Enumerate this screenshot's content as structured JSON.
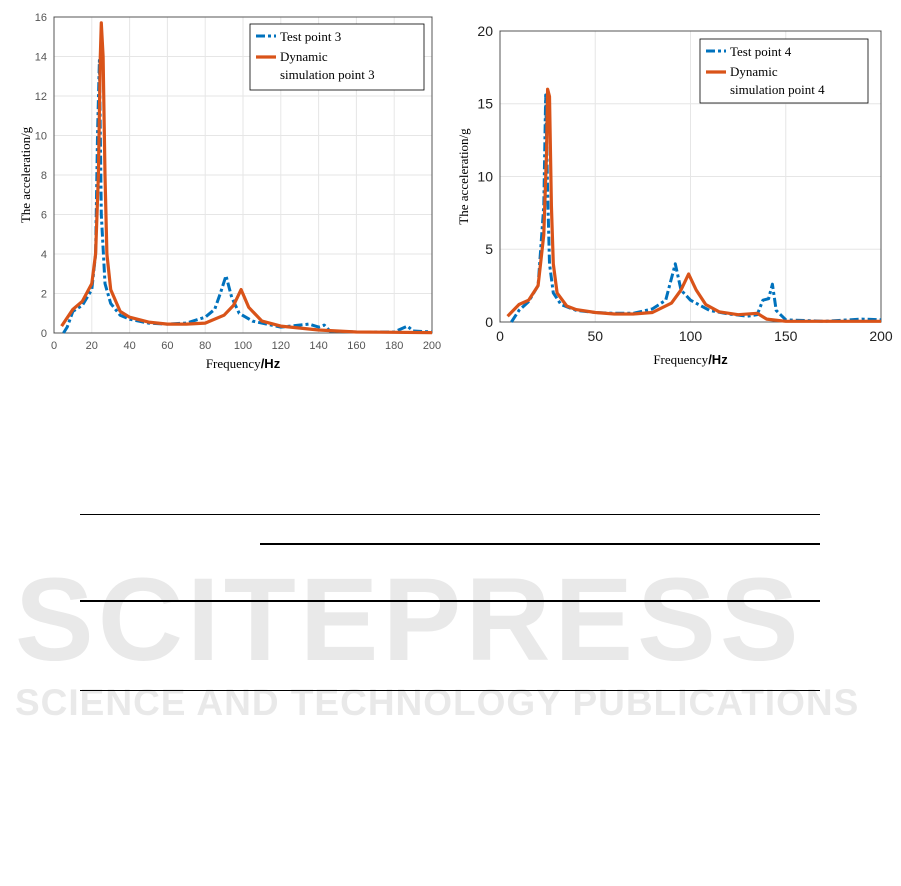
{
  "watermark": {
    "title": "SCITEPRESS",
    "subtitle": "SCIENCE AND TECHNOLOGY PUBLICATIONS"
  },
  "colors": {
    "test": "#0072bd",
    "sim": "#d95319",
    "grid": "#e6e6e6"
  },
  "chart_data": [
    {
      "type": "line",
      "xlabel": "Frequency",
      "xunit": "/Hz",
      "ylabel": "The acceleration/g",
      "xlim": [
        0,
        200
      ],
      "ylim": [
        0,
        16
      ],
      "xticks": [
        0,
        20,
        40,
        60,
        80,
        100,
        120,
        140,
        160,
        180,
        200
      ],
      "yticks": [
        0,
        2,
        4,
        6,
        8,
        10,
        12,
        14,
        16
      ],
      "grid": true,
      "legend": "top-right",
      "series": [
        {
          "name": "Test point 3",
          "style": "dash-dot",
          "x": [
            5,
            7,
            10,
            15,
            20,
            22,
            23,
            24,
            25,
            27,
            30,
            35,
            40,
            50,
            60,
            70,
            80,
            85,
            88,
            91,
            94,
            98,
            105,
            120,
            135,
            140,
            143,
            146,
            160,
            180,
            187,
            190,
            200
          ],
          "y": [
            0,
            0.3,
            1.1,
            1.4,
            2.2,
            4,
            10,
            13.8,
            6,
            2.5,
            1.5,
            0.9,
            0.7,
            0.5,
            0.45,
            0.5,
            0.8,
            1.2,
            2,
            2.9,
            1.8,
            1.0,
            0.6,
            0.3,
            0.45,
            0.3,
            0.4,
            0.1,
            0.05,
            0.05,
            0.35,
            0.1,
            0.05
          ]
        },
        {
          "name": "Dynamic simulation point 3",
          "style": "solid",
          "x": [
            4,
            10,
            15,
            20,
            22,
            23.5,
            24.5,
            25,
            26,
            27,
            28,
            30,
            35,
            40,
            50,
            60,
            70,
            80,
            90,
            95,
            99,
            103,
            110,
            120,
            140,
            160,
            200
          ],
          "y": [
            0.35,
            1.2,
            1.6,
            2.5,
            4,
            8,
            14,
            15.7,
            14,
            8,
            4,
            2.2,
            1.1,
            0.8,
            0.55,
            0.45,
            0.45,
            0.5,
            0.9,
            1.4,
            2.2,
            1.3,
            0.6,
            0.35,
            0.15,
            0.05,
            0.02
          ]
        }
      ]
    },
    {
      "type": "line",
      "xlabel": "Frequency",
      "xunit": "/Hz",
      "ylabel": "The acceleration/g",
      "xlim": [
        0,
        200
      ],
      "ylim": [
        0,
        20
      ],
      "xticks": [
        0,
        50,
        100,
        150,
        200
      ],
      "yticks": [
        0,
        5,
        10,
        15,
        20
      ],
      "grid": true,
      "legend": "top-right",
      "series": [
        {
          "name": "Test point 4",
          "style": "dash-dot",
          "x": [
            6,
            10,
            15,
            20,
            23,
            24,
            25,
            26,
            28,
            32,
            40,
            50,
            60,
            70,
            80,
            87,
            92,
            95,
            100,
            110,
            120,
            130,
            135,
            138,
            141,
            143,
            145,
            150,
            170,
            190,
            200
          ],
          "y": [
            0,
            0.8,
            1.4,
            2.5,
            8,
            15.6,
            9,
            4,
            2,
            1.2,
            0.8,
            0.65,
            0.6,
            0.6,
            0.9,
            1.5,
            4.0,
            2.2,
            1.5,
            0.8,
            0.55,
            0.4,
            0.5,
            1.5,
            1.6,
            2.6,
            0.8,
            0.15,
            0.05,
            0.2,
            0.15
          ]
        },
        {
          "name": "Dynamic simulation point 4",
          "style": "solid",
          "x": [
            4,
            10,
            15,
            20,
            23,
            24.5,
            25,
            26,
            27,
            28,
            30,
            35,
            40,
            50,
            60,
            70,
            80,
            90,
            95,
            99,
            103,
            108,
            115,
            125,
            135,
            140,
            150,
            200
          ],
          "y": [
            0.4,
            1.2,
            1.5,
            2.5,
            6,
            12,
            16.0,
            15.5,
            8,
            4,
            2,
            1.1,
            0.85,
            0.65,
            0.55,
            0.55,
            0.65,
            1.3,
            2.2,
            3.3,
            2.2,
            1.2,
            0.7,
            0.5,
            0.6,
            0.2,
            0.05,
            0.05
          ]
        }
      ]
    }
  ]
}
